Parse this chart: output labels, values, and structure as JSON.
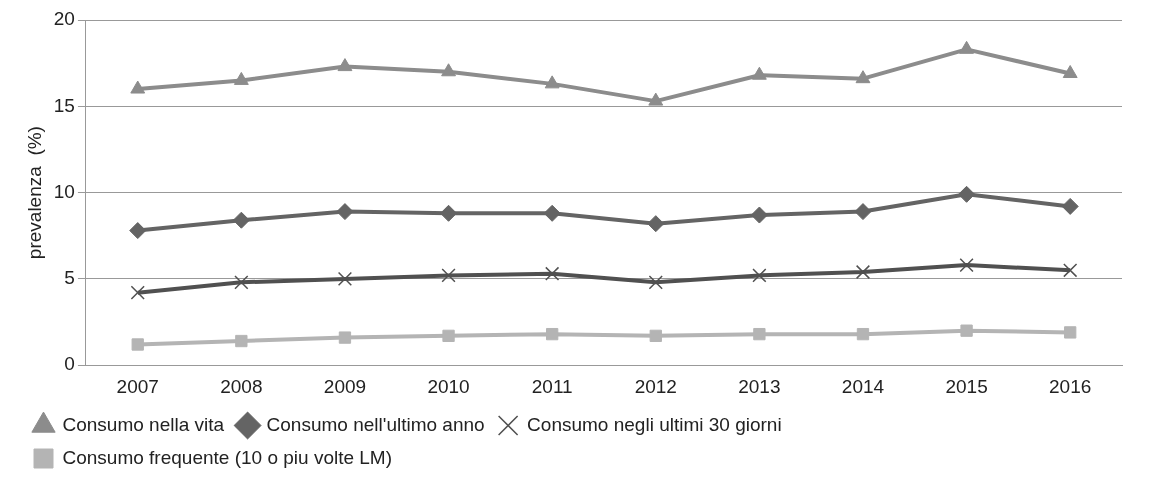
{
  "chart_data": {
    "type": "line",
    "ylabel": "prevalenza  (%)",
    "categories": [
      "2007",
      "2008",
      "2009",
      "2010",
      "2011",
      "2012",
      "2013",
      "2014",
      "2015",
      "2016"
    ],
    "ylim": [
      0,
      20
    ],
    "yticks": [
      0,
      5,
      10,
      15,
      20
    ],
    "grid": "y",
    "legend": "bottom",
    "line_style": "solid",
    "series": [
      {
        "name": "Consumo nella vita",
        "color": "#8c8c8c",
        "marker": "triangle",
        "values": [
          16.0,
          16.5,
          17.3,
          17.0,
          16.3,
          15.3,
          16.8,
          16.6,
          18.3,
          16.9
        ]
      },
      {
        "name": "Consumo nell'ultimo anno",
        "color": "#646464",
        "marker": "diamond",
        "values": [
          7.8,
          8.4,
          8.9,
          8.8,
          8.8,
          8.2,
          8.7,
          8.9,
          9.9,
          9.2
        ]
      },
      {
        "name": "Consumo negli ultimi 30 giorni",
        "color": "#505050",
        "marker": "cross",
        "values": [
          4.2,
          4.8,
          5.0,
          5.2,
          5.3,
          4.8,
          5.2,
          5.4,
          5.8,
          5.5
        ]
      },
      {
        "name": "Consumo frequente (10 o piu volte LM)",
        "color": "#b4b4b4",
        "marker": "square",
        "values": [
          1.2,
          1.4,
          1.6,
          1.7,
          1.8,
          1.7,
          1.8,
          1.8,
          2.0,
          1.9
        ]
      }
    ]
  }
}
